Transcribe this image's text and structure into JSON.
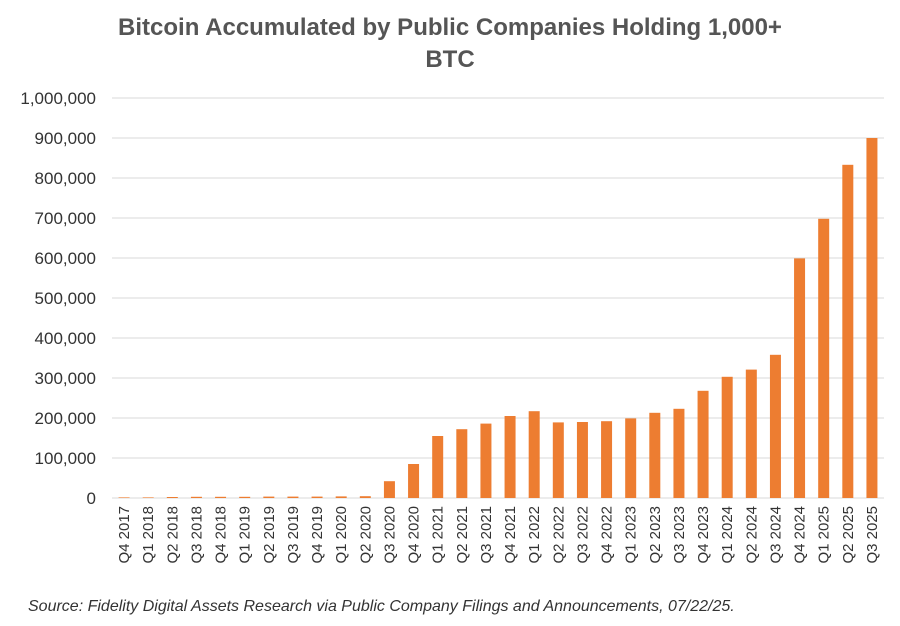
{
  "chart_data": {
    "type": "bar",
    "title_line1": "Bitcoin Accumulated by Public Companies Holding 1,000+",
    "title_line2": "BTC",
    "xlabel": "",
    "ylabel": "",
    "ylim": [
      0,
      1000000
    ],
    "yticks": [
      0,
      100000,
      200000,
      300000,
      400000,
      500000,
      600000,
      700000,
      800000,
      900000,
      1000000
    ],
    "ytick_labels": [
      "0",
      "100,000",
      "200,000",
      "300,000",
      "400,000",
      "500,000",
      "600,000",
      "700,000",
      "800,000",
      "900,000",
      "1,000,000"
    ],
    "grid": true,
    "legend": "none",
    "bar_color": "#ED7D31",
    "categories": [
      "Q4 2017",
      "Q1 2018",
      "Q2 2018",
      "Q3 2018",
      "Q4 2018",
      "Q1 2019",
      "Q2 2019",
      "Q3 2019",
      "Q4 2019",
      "Q1 2020",
      "Q2 2020",
      "Q3 2020",
      "Q4 2020",
      "Q1 2021",
      "Q2 2021",
      "Q3 2021",
      "Q4 2021",
      "Q1 2022",
      "Q2 2022",
      "Q3 2022",
      "Q4 2022",
      "Q1 2023",
      "Q2 2023",
      "Q3 2023",
      "Q4 2023",
      "Q1 2024",
      "Q2 2024",
      "Q3 2024",
      "Q4 2024",
      "Q1 2025",
      "Q2 2025",
      "Q3 2025"
    ],
    "values": [
      1500,
      1500,
      2500,
      3000,
      3000,
      3000,
      3500,
      3500,
      3500,
      4000,
      4500,
      42000,
      85000,
      155000,
      172000,
      186000,
      205000,
      217000,
      189000,
      190000,
      192000,
      199000,
      213000,
      223000,
      268000,
      303000,
      321000,
      358000,
      599000,
      698000,
      833000,
      900000
    ],
    "source": "Source: Fidelity Digital Assets Research via Public Company Filings and Announcements, 07/22/25."
  }
}
